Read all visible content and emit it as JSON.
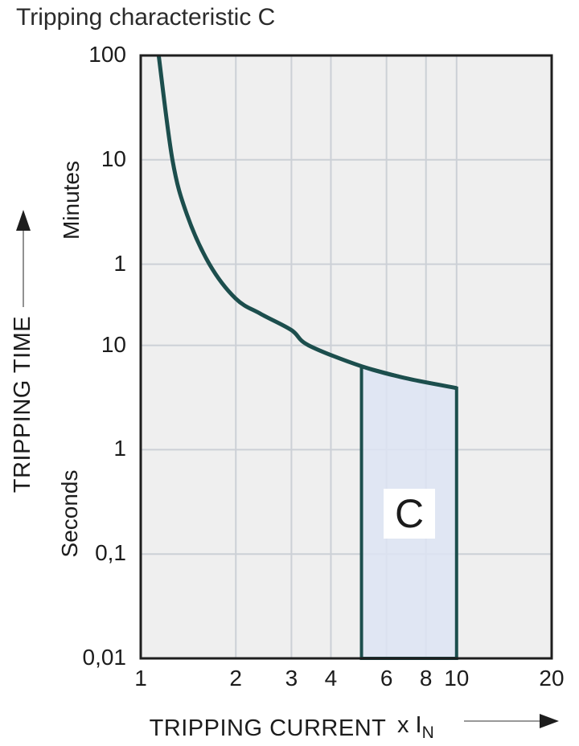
{
  "page": {
    "title": "Tripping characteristic C"
  },
  "chart_data": {
    "type": "line",
    "title": "Tripping characteristic C",
    "xlabel": "TRIPPING CURRENT",
    "x_unit": {
      "prefix": "x I",
      "sub": "N"
    },
    "ylabel": "TRIPPING TIME",
    "y_units": {
      "minutes": "Minutes",
      "seconds": "Seconds"
    },
    "x_scale": "log",
    "y_scale": "log",
    "grid": true,
    "legend": false,
    "xlim": [
      1,
      20
    ],
    "ylim_seconds": [
      0.01,
      6000
    ],
    "x_ticks": [
      {
        "v": 1,
        "label": "1"
      },
      {
        "v": 2,
        "label": "2"
      },
      {
        "v": 3,
        "label": "3"
      },
      {
        "v": 4,
        "label": "4"
      },
      {
        "v": 6,
        "label": "6"
      },
      {
        "v": 8,
        "label": "8"
      },
      {
        "v": 10,
        "label": "10"
      },
      {
        "v": 20,
        "label": "20"
      }
    ],
    "x_gridlines": [
      2,
      3,
      4,
      6,
      8,
      10
    ],
    "y_ticks": [
      {
        "seconds": 6000,
        "label": "100",
        "unit": "Minutes"
      },
      {
        "seconds": 600,
        "label": "10",
        "unit": "Minutes"
      },
      {
        "seconds": 60,
        "label": "1",
        "unit": "Minutes"
      },
      {
        "seconds": 10,
        "label": "10",
        "unit": "Seconds"
      },
      {
        "seconds": 1,
        "label": "1",
        "unit": "Seconds"
      },
      {
        "seconds": 0.1,
        "label": "0,1",
        "unit": "Seconds"
      },
      {
        "seconds": 0.01,
        "label": "0,01",
        "unit": "Seconds"
      }
    ],
    "y_gridlines_seconds": [
      600,
      60,
      10,
      1,
      0.1
    ],
    "series": [
      {
        "name": "tripping-curve",
        "color": "#1c4e4d",
        "points_x_multiple_vs_seconds": [
          [
            1.14,
            6000
          ],
          [
            1.26,
            600
          ],
          [
            1.4,
            180
          ],
          [
            1.65,
            60
          ],
          [
            2.0,
            28
          ],
          [
            2.4,
            20
          ],
          [
            3.0,
            14
          ],
          [
            3.4,
            10
          ],
          [
            5.0,
            6.3
          ],
          [
            7.0,
            4.8
          ],
          [
            10.0,
            3.9
          ]
        ]
      }
    ],
    "region": {
      "label": "C",
      "x_range": [
        5,
        10
      ],
      "t_bottom_seconds": 0.01,
      "t_top_at_x5_seconds": 6.3,
      "t_top_at_x10_seconds": 3.9,
      "fill": "#dde4f3",
      "stroke": "#1c4e4d"
    },
    "colors": {
      "plot_bg": "#efefef",
      "gridline": "#ccd0d6",
      "border": "#1e1e1e",
      "text": "#1c1c1c",
      "arrow_shaft": "#777777",
      "arrow_head": "#1d1d1d"
    }
  }
}
